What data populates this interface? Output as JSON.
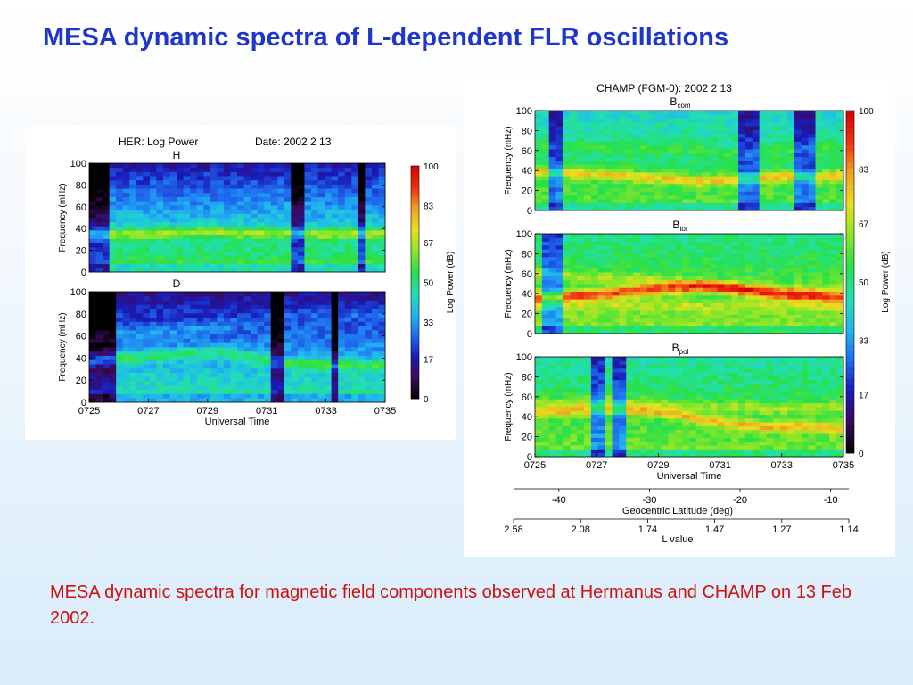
{
  "slide": {
    "title": "MESA dynamic spectra of L-dependent FLR oscillations",
    "caption": "MESA dynamic spectra for magnetic field components observed at Hermanus and CHAMP on 13 Feb 2002."
  },
  "colors": {
    "title": "#1f36c8",
    "caption": "#d01010",
    "colormap": [
      "#000000",
      "#3c0a5a",
      "#1a1ab8",
      "#1f6cf0",
      "#20b8f0",
      "#22e0b0",
      "#28e048",
      "#8ae628",
      "#e8e020",
      "#f0a020",
      "#f03010",
      "#d80000"
    ]
  },
  "chart_data": [
    {
      "type": "heatmap",
      "title": "HER: Log Power",
      "date_text": "Date:  2002  2 13",
      "xlabel": "Universal Time",
      "x_ticks": [
        "0725",
        "0727",
        "0729",
        "0731",
        "0733",
        "0735"
      ],
      "x_range": [
        "0725",
        "0735"
      ],
      "colorbar": {
        "label": "Log Power (dB)",
        "ticks": [
          0,
          17,
          33,
          50,
          67,
          83,
          100
        ],
        "tick_labels": [
          "0",
          "17",
          "33",
          "50",
          "67",
          "83",
          "100"
        ],
        "range": [
          0,
          100
        ]
      },
      "panels": [
        {
          "label": "H",
          "ylabel": "Frequency (mHz)",
          "y_ticks": [
            "0",
            "20",
            "40",
            "60",
            "80",
            "100"
          ],
          "ylim": [
            0,
            100
          ],
          "base": 34,
          "ridges": [
            {
              "f": [
                36,
                35,
                36,
                37,
                37,
                36,
                36,
                35,
                36,
                35
              ],
              "p": 22
            }
          ],
          "bg_lo": 50,
          "bg_hi": 8
        },
        {
          "label": "D",
          "ylabel": "Frequency (mHz)",
          "y_ticks": [
            "0",
            "20",
            "40",
            "60",
            "80",
            "100"
          ],
          "ylim": [
            0,
            100
          ],
          "base": 30,
          "ridges": [
            {
              "f": [
                38,
                40,
                42,
                44,
                46,
                40,
                35,
                34,
                34,
                33
              ],
              "p": 18
            },
            {
              "f": [
                60,
                62,
                64,
                66,
                70,
                74,
                78,
                80,
                80,
                80
              ],
              "p": 6
            }
          ],
          "bg_lo": 42,
          "bg_hi": 6
        }
      ]
    },
    {
      "type": "heatmap",
      "title": "CHAMP (FGM-0):  2002  2 13",
      "xlabel": "Universal Time",
      "x_ticks": [
        "0725",
        "0727",
        "0729",
        "0731",
        "0733",
        "0735"
      ],
      "x_range": [
        "0725",
        "0735"
      ],
      "colorbar": {
        "label": "Log Power (dB)",
        "ticks": [
          0,
          17,
          33,
          50,
          67,
          83,
          100
        ],
        "tick_labels": [
          "0",
          "17",
          "33",
          "50",
          "67",
          "83",
          "100"
        ],
        "range": [
          0,
          100
        ]
      },
      "panels": [
        {
          "label": "B",
          "label_sub": "com",
          "ylabel": "Frequency (mHz)",
          "y_ticks": [
            "0",
            "20",
            "40",
            "60",
            "80",
            "100"
          ],
          "ylim": [
            0,
            100
          ],
          "base": 50,
          "ridges": [
            {
              "f": [
                40,
                38,
                36,
                34,
                32,
                30,
                32,
                34,
                34,
                36
              ],
              "p": 22
            },
            {
              "f": [
                65,
                66,
                64,
                62,
                62,
                60,
                58,
                60,
                62,
                64
              ],
              "p": 6
            }
          ],
          "bg_lo": 48,
          "bg_hi": 30
        },
        {
          "label": "B",
          "label_sub": "tor",
          "ylabel": "Frequency (mHz)",
          "y_ticks": [
            "0",
            "20",
            "40",
            "60",
            "80",
            "100"
          ],
          "ylim": [
            0,
            100
          ],
          "base": 52,
          "ridges": [
            {
              "f": [
                36,
                38,
                40,
                44,
                46,
                48,
                44,
                40,
                38,
                36
              ],
              "p": 32
            },
            {
              "f": [
                60,
                58,
                56,
                56,
                52,
                50,
                48,
                46,
                44,
                44
              ],
              "p": 10
            },
            {
              "f": [
                28,
                28,
                30,
                30,
                28,
                26,
                28,
                30,
                28,
                26
              ],
              "p": 8
            }
          ],
          "bg_lo": 52,
          "bg_hi": 36
        },
        {
          "label": "B",
          "label_sub": "pol",
          "ylabel": "Frequency (mHz)",
          "y_ticks": [
            "0",
            "20",
            "40",
            "60",
            "80",
            "100"
          ],
          "ylim": [
            0,
            100
          ],
          "base": 50,
          "ridges": [
            {
              "f": [
                44,
                46,
                48,
                46,
                44,
                36,
                32,
                30,
                30,
                28
              ],
              "p": 22
            },
            {
              "f": [
                56,
                54,
                56,
                54,
                52,
                50,
                50,
                48,
                50,
                50
              ],
              "p": 12
            }
          ],
          "bg_lo": 50,
          "bg_hi": 34
        }
      ],
      "secondary_axes": [
        {
          "label": "Geocentric Latitude (deg)",
          "ticks": [
            "-40",
            "-30",
            "-20",
            "-10"
          ],
          "values": [
            -40,
            -30,
            -20,
            -10
          ],
          "range": [
            -45,
            -8
          ]
        },
        {
          "label": "L value",
          "ticks": [
            "2.58",
            "2.08",
            "1.74",
            "1.47",
            "1.27",
            "1.14"
          ]
        }
      ]
    }
  ]
}
